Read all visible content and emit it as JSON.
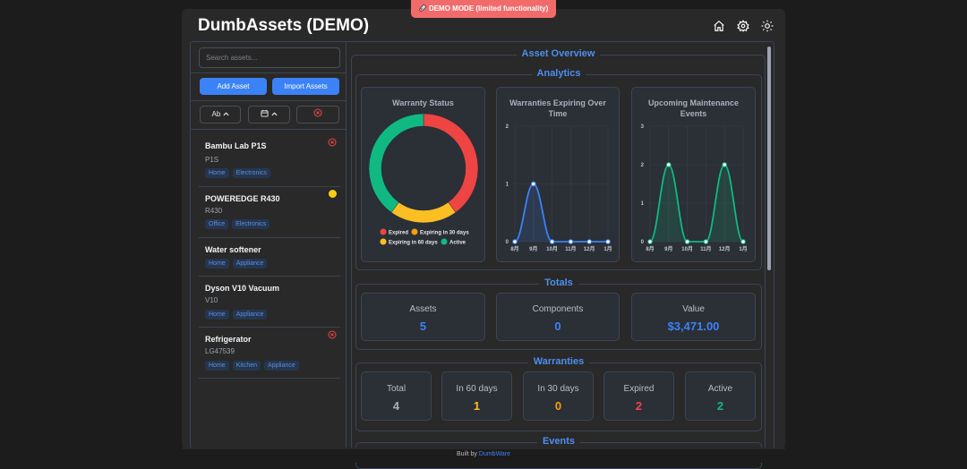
{
  "banner": "DEMO MODE (limited functionality)",
  "header": {
    "title": "DumbAssets (DEMO)"
  },
  "sidebar": {
    "search_placeholder": "Search assets...",
    "buttons": [
      "Add Asset",
      "Import Assets"
    ],
    "sort_name": "Ab",
    "assets": [
      {
        "name": "Bambu Lab P1S",
        "model": "P1S",
        "tags": [
          "Home",
          "Electronics"
        ]
      },
      {
        "name": "POWEREDGE R430",
        "model": "R430",
        "tags": [
          "Office",
          "Electronics"
        ]
      },
      {
        "name": "Water softener",
        "tags": [
          "Home",
          "Appliance"
        ]
      },
      {
        "name": "Dyson V10 Vacuum",
        "model": "V10",
        "tags": [
          "Home",
          "Appliance"
        ]
      },
      {
        "name": "Refrigerator",
        "model": "LG47539",
        "tags": [
          "Home",
          "Kitchen",
          "Appliance"
        ]
      }
    ]
  },
  "overview": {
    "title": "Asset Overview",
    "analytics": {
      "title": "Analytics",
      "charts": [
        {
          "type": "pie",
          "title": "Warranty Status",
          "categories": [
            "Expired",
            "Expiring in 30 days",
            "Expiring in 60 days",
            "Active"
          ],
          "values": [
            2,
            0,
            1,
            2
          ],
          "colors": [
            "#ef4444",
            "#f59e0b",
            "#fbbf24",
            "#10b981"
          ]
        },
        {
          "type": "line",
          "title": "Warranties Expiring Over Time",
          "categories": [
            "8月",
            "9月",
            "10月",
            "11月",
            "12月",
            "1月"
          ],
          "series": [
            {
              "color": "#3b82f6",
              "values": [
                0,
                1,
                0,
                0,
                0,
                0
              ]
            }
          ],
          "ylim": [
            0,
            2
          ],
          "yticks": [
            0,
            1,
            2
          ],
          "grid": true
        },
        {
          "type": "line",
          "title": "Upcoming Maintenance Events",
          "categories": [
            "8月",
            "9月",
            "10月",
            "11月",
            "12月",
            "1月"
          ],
          "series": [
            {
              "color": "#10b981",
              "values": [
                0,
                2,
                0,
                0,
                2,
                0
              ]
            }
          ],
          "ylim": [
            0,
            3
          ],
          "yticks": [
            0,
            1,
            2,
            3
          ],
          "grid": true
        }
      ]
    },
    "totals": {
      "title": "Totals",
      "items": [
        {
          "label": "Assets",
          "value": 5
        },
        {
          "label": "Components",
          "value": 0
        },
        {
          "label": "Value",
          "value": "$3,471.00"
        }
      ]
    },
    "warranties": {
      "title": "Warranties",
      "items": [
        {
          "label": "Total",
          "value": 4,
          "color": "#a9b1bd"
        },
        {
          "label": "In 60 days",
          "value": 1,
          "color": "#fbbf24"
        },
        {
          "label": "In 30 days",
          "value": 0,
          "color": "#f59e0b"
        },
        {
          "label": "Expired",
          "value": 2,
          "color": "#ef4444"
        },
        {
          "label": "Active",
          "value": 2,
          "color": "#10b981"
        }
      ]
    },
    "events": {
      "title": "Events"
    }
  },
  "footer": {
    "text": "Built by",
    "link": "DumbWare"
  }
}
